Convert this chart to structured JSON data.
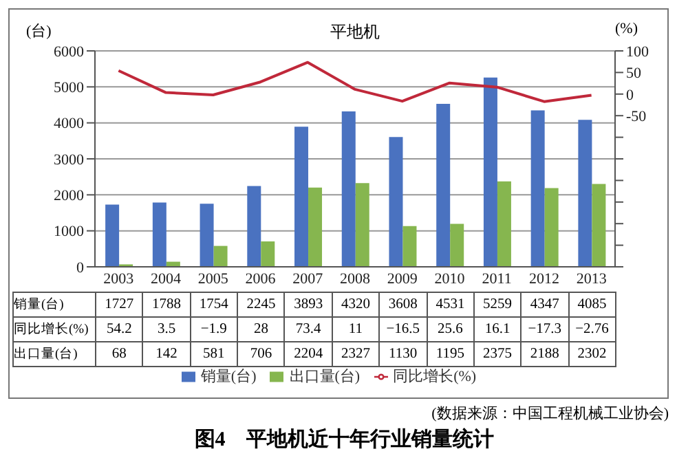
{
  "chart_data": {
    "type": "bar",
    "title": "平地机",
    "ylabel": "(台)",
    "y2label": "(%)",
    "categories": [
      "2003",
      "2004",
      "2005",
      "2006",
      "2007",
      "2008",
      "2009",
      "2010",
      "2011",
      "2012",
      "2013"
    ],
    "series": [
      {
        "name": "销量(台)",
        "color": "#4a72c0",
        "values": [
          1727,
          1788,
          1754,
          2245,
          3893,
          4320,
          3608,
          4531,
          5259,
          4347,
          4085
        ]
      },
      {
        "name": "同比增长(%)",
        "type": "line",
        "axis": "y2",
        "color": "#c0283a",
        "values": [
          54.2,
          3.5,
          -1.9,
          28,
          73.4,
          11,
          -16.5,
          25.6,
          16.1,
          -17.3,
          -2.76
        ]
      },
      {
        "name": "出口量(台)",
        "color": "#86b64f",
        "values": [
          68,
          142,
          581,
          706,
          2204,
          2327,
          1130,
          1195,
          2375,
          2188,
          2302
        ]
      }
    ],
    "ylim": [
      0,
      6000
    ],
    "yticks": [
      0,
      1000,
      2000,
      3000,
      4000,
      5000,
      6000
    ],
    "y2lim": [
      -400,
      100
    ],
    "y2ticks": [
      100,
      50,
      0,
      -50,
      {
        "value": -100,
        "label": null
      },
      {
        "value": -150,
        "label": null
      },
      {
        "value": -200,
        "label": null
      },
      {
        "value": -250,
        "label": null
      },
      {
        "value": -300,
        "label": null
      },
      {
        "value": -350,
        "label": null
      },
      {
        "value": -400,
        "label": null
      }
    ],
    "grid": "y",
    "legend": "bottom",
    "data_labels": true,
    "marker": "none",
    "line_style": "solid",
    "annotations": [
      "(数据来源：中国工程机械工业协会)",
      "图4　平地机近十年行业销量统计"
    ]
  }
}
